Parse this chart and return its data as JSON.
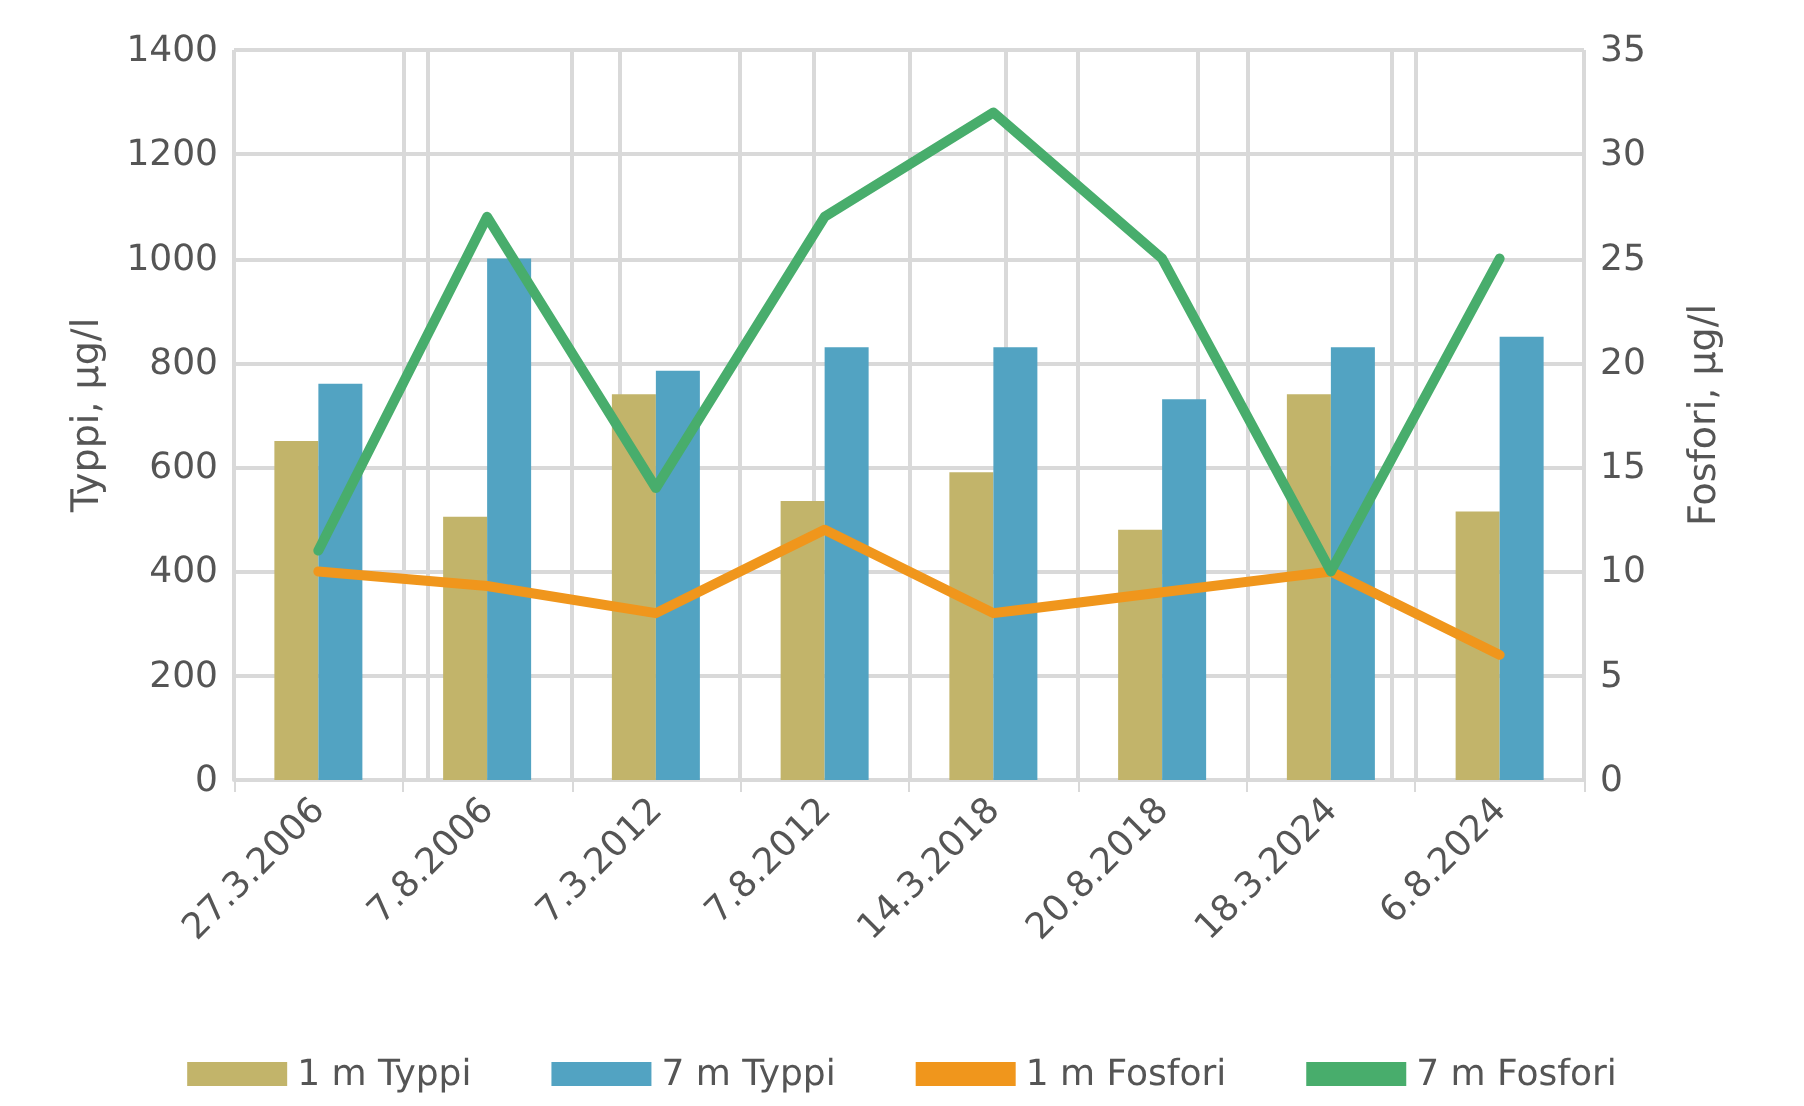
{
  "chart_data": {
    "type": "bar",
    "ylabel": "Typpi, µg/l",
    "y2label": "Fosfori, µg/l",
    "categories": [
      "27.3.2006",
      "7.8.2006",
      "7.3.2012",
      "7.8.2012",
      "14.3.2018",
      "20.8.2018",
      "18.3.2024",
      "6.8.2024"
    ],
    "series": [
      {
        "name": "1 m Typpi",
        "color": "#c2b46a",
        "values": [
          650,
          505,
          740,
          535,
          590,
          480,
          740,
          515
        ]
      },
      {
        "name": "7 m Typpi",
        "color": "#52a3c2",
        "values": [
          760,
          1000,
          785,
          830,
          830,
          730,
          830,
          850
        ]
      },
      {
        "name": "1 m Fosfori",
        "type": "line",
        "axis": "y2",
        "color": "#f0961c",
        "values": [
          10,
          9.3,
          8,
          12,
          8,
          9,
          10,
          6
        ]
      },
      {
        "name": "7 m Fosfori",
        "type": "line",
        "axis": "y2",
        "color": "#48ad6c",
        "values": [
          11,
          27,
          14,
          27,
          32,
          25,
          10,
          25
        ]
      }
    ],
    "ylim": [
      0,
      1400
    ],
    "yticks": [
      0,
      200,
      400,
      600,
      800,
      1000,
      1200,
      1400
    ],
    "y2lim": [
      0,
      35
    ],
    "y2ticks": [
      0,
      5,
      10,
      15,
      20,
      25,
      30,
      35
    ],
    "grid": true,
    "legend": "bottom",
    "marker": "none"
  }
}
